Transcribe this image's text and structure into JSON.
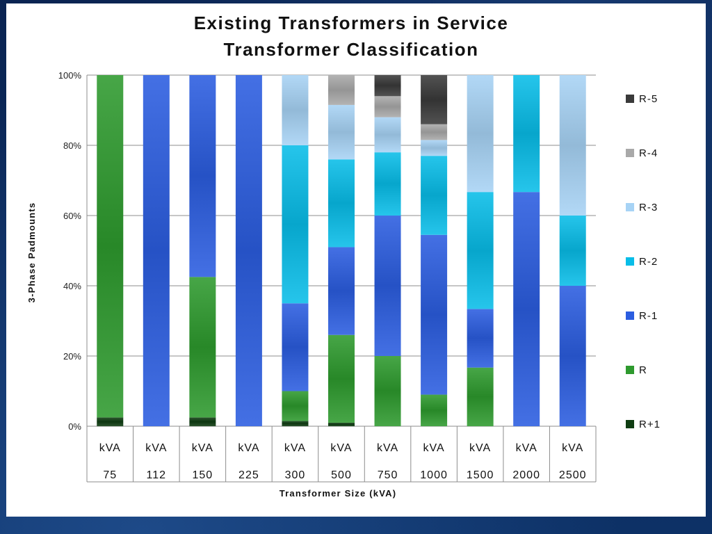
{
  "chart_data": {
    "type": "bar",
    "stacked": true,
    "percent": true,
    "title": "Existing Transformers in Service",
    "subtitle": "Transformer Classification",
    "xlabel": "Transformer Size (kVA)",
    "ylabel": "3-Phase Padmounts",
    "ylim": [
      0,
      100
    ],
    "yticks": [
      "0%",
      "20%",
      "40%",
      "60%",
      "80%",
      "100%"
    ],
    "categories": [
      {
        "unit": "kVA",
        "size": "75"
      },
      {
        "unit": "kVA",
        "size": "112"
      },
      {
        "unit": "kVA",
        "size": "150"
      },
      {
        "unit": "kVA",
        "size": "225"
      },
      {
        "unit": "kVA",
        "size": "300"
      },
      {
        "unit": "kVA",
        "size": "500"
      },
      {
        "unit": "kVA",
        "size": "750"
      },
      {
        "unit": "kVA",
        "size": "1000"
      },
      {
        "unit": "kVA",
        "size": "1500"
      },
      {
        "unit": "kVA",
        "size": "2000"
      },
      {
        "unit": "kVA",
        "size": "2500"
      }
    ],
    "series": [
      {
        "name": "R+1",
        "color": "#0f3d12",
        "values": [
          2.5,
          0,
          2.5,
          0,
          1.5,
          1.0,
          0,
          0,
          0,
          0,
          0
        ]
      },
      {
        "name": "R",
        "color": "#2e9a2e",
        "values": [
          97.5,
          0,
          40,
          0,
          8.5,
          25,
          20,
          9,
          16.7,
          0,
          0
        ]
      },
      {
        "name": "R-1",
        "color": "#2b5de0",
        "values": [
          0,
          100,
          57.5,
          100,
          25,
          25,
          40,
          45.5,
          16.7,
          66.7,
          40
        ]
      },
      {
        "name": "R-2",
        "color": "#08bde8",
        "values": [
          0,
          0,
          0,
          0,
          45,
          25,
          18,
          22.5,
          33.3,
          33.3,
          20
        ]
      },
      {
        "name": "R-3",
        "color": "#a7d3f5",
        "values": [
          0,
          0,
          0,
          0,
          20,
          15.5,
          10,
          4.5,
          33.3,
          0,
          40
        ]
      },
      {
        "name": "R-4",
        "color": "#a9a9a9",
        "values": [
          0,
          0,
          0,
          0,
          0,
          8.5,
          6,
          4.5,
          0,
          0,
          0
        ]
      },
      {
        "name": "R-5",
        "color": "#3a3a3a",
        "values": [
          0,
          0,
          0,
          0,
          0,
          0,
          6,
          14,
          0,
          0,
          0
        ]
      }
    ],
    "legend_position": "right",
    "grid": true
  }
}
